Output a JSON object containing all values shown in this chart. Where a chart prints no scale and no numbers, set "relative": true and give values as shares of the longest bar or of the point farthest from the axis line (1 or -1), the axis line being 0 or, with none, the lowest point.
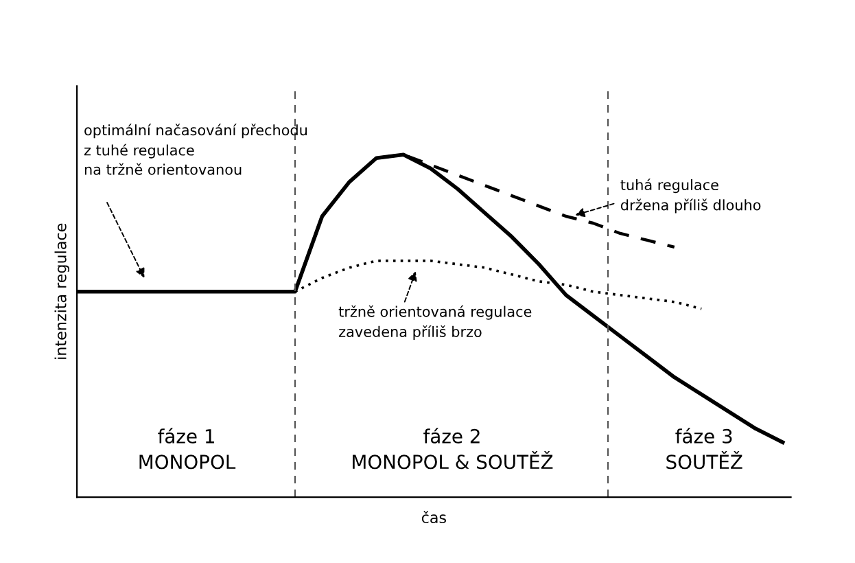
{
  "chart_data": {
    "type": "line",
    "relative": true,
    "xlabel": "čas",
    "ylabel": "intenzita regulace",
    "categories": [
      null,
      null,
      null,
      null,
      null,
      null,
      null,
      null,
      null,
      null,
      null,
      null,
      null,
      null,
      null,
      null,
      null,
      null,
      null,
      null,
      null,
      null,
      null,
      null,
      null,
      null,
      null
    ],
    "series": [
      {
        "color": "#000000",
        "line_style": "solid",
        "values": [
          0.6,
          0.6,
          0.6,
          0.6,
          0.6,
          0.6,
          0.6,
          0.6,
          0.6,
          0.82,
          0.92,
          0.99,
          1.0,
          0.96,
          0.9,
          0.83,
          0.76,
          0.68,
          0.59,
          0.53,
          0.47,
          0.41,
          0.35,
          0.3,
          0.25,
          0.2,
          0.16
        ]
      },
      {
        "color": "#000000",
        "line_style": "dashed",
        "values": [
          null,
          null,
          null,
          null,
          null,
          null,
          null,
          null,
          0.6,
          0.82,
          0.92,
          0.99,
          1.0,
          0.97,
          0.94,
          0.91,
          0.88,
          0.85,
          0.82,
          0.8,
          0.77,
          0.75,
          0.73,
          null,
          null,
          null,
          null
        ]
      },
      {
        "color": "#000000",
        "line_style": "dotted",
        "values": [
          null,
          null,
          null,
          null,
          null,
          null,
          null,
          null,
          0.6,
          0.64,
          0.67,
          0.69,
          0.69,
          0.69,
          0.68,
          0.67,
          0.65,
          0.63,
          0.62,
          0.6,
          0.59,
          0.58,
          0.57,
          0.55,
          null,
          null,
          null
        ]
      }
    ],
    "annotations": [
      "optimální načasování přechodu\nz tuhé regulace\nna tržně orientovanou",
      "tuhá regulace\ndržena příliš dlouho",
      "tržně orientovaná regulace\nzavedena příliš brzo",
      "fáze 1\nMONOPOL",
      "fáze 2\nMONOPOL & SOUTĚŽ",
      "fáze 3\nSOUTĚŽ"
    ],
    "legend": false,
    "grid": false
  }
}
